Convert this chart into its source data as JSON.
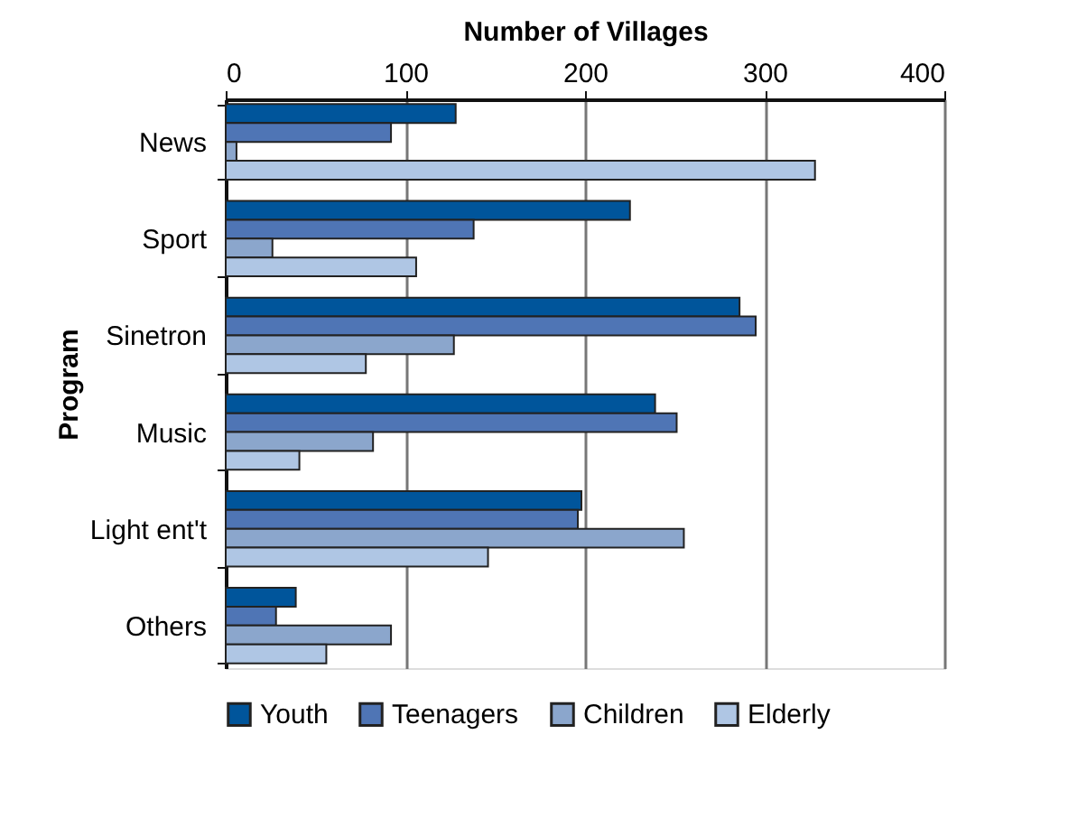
{
  "chart_data": {
    "type": "bar",
    "orientation": "horizontal",
    "xlabel": "Number of Villages",
    "ylabel": "Program",
    "categories": [
      "News",
      "Sport",
      "Sinetron",
      "Music",
      "Light ent't",
      "Others"
    ],
    "series": [
      {
        "name": "Youth",
        "color": "#00559b",
        "values": [
          128,
          225,
          286,
          239,
          198,
          39
        ]
      },
      {
        "name": "Teenagers",
        "color": "#4f75b5",
        "values": [
          92,
          138,
          295,
          251,
          196,
          28
        ]
      },
      {
        "name": "Children",
        "color": "#8ba6cc",
        "values": [
          6,
          26,
          127,
          82,
          255,
          92
        ]
      },
      {
        "name": "Elderly",
        "color": "#afc6e4",
        "values": [
          328,
          106,
          78,
          41,
          146,
          56
        ]
      }
    ],
    "xlim": [
      0,
      400
    ],
    "xticks": [
      0,
      100,
      200,
      300,
      400
    ],
    "grid": "x",
    "legend": "bottom"
  }
}
